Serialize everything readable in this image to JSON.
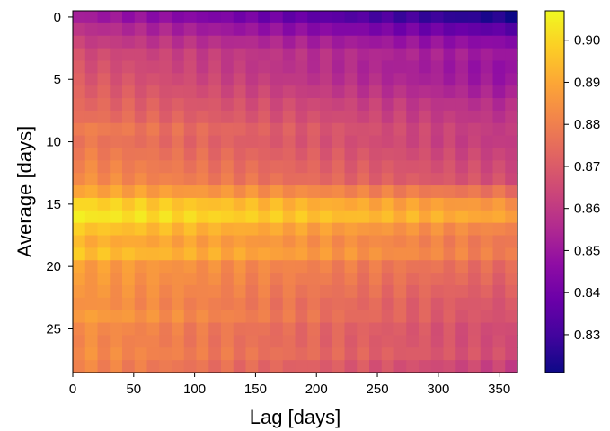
{
  "chart_data": {
    "type": "heatmap",
    "title": "",
    "xlabel": "Lag [days]",
    "ylabel": "Average [days]",
    "x_range": [
      0,
      365
    ],
    "y_range": [
      0,
      29
    ],
    "y_inverted": true,
    "x_ticks": [
      0,
      50,
      100,
      150,
      200,
      250,
      300,
      350
    ],
    "y_ticks": [
      0,
      5,
      10,
      15,
      20,
      25
    ],
    "colormap": "plasma",
    "colorbar": {
      "min": 0.821,
      "max": 0.907,
      "ticks": [
        0.83,
        0.84,
        0.85,
        0.86,
        0.87,
        0.88,
        0.89,
        0.9
      ],
      "tick_labels": [
        "0.83",
        "0.84",
        "0.85",
        "0.86",
        "0.87",
        "0.88",
        "0.89",
        "0.90"
      ]
    },
    "rows": [
      {
        "average": 0,
        "start": 0.852,
        "end": 0.823
      },
      {
        "average": 1,
        "start": 0.858,
        "end": 0.835
      },
      {
        "average": 2,
        "start": 0.862,
        "end": 0.845
      },
      {
        "average": 3,
        "start": 0.866,
        "end": 0.85
      },
      {
        "average": 4,
        "start": 0.868,
        "end": 0.848
      },
      {
        "average": 5,
        "start": 0.87,
        "end": 0.849
      },
      {
        "average": 6,
        "start": 0.872,
        "end": 0.852
      },
      {
        "average": 7,
        "start": 0.874,
        "end": 0.856
      },
      {
        "average": 8,
        "start": 0.876,
        "end": 0.858
      },
      {
        "average": 9,
        "start": 0.88,
        "end": 0.86
      },
      {
        "average": 10,
        "start": 0.878,
        "end": 0.86
      },
      {
        "average": 11,
        "start": 0.88,
        "end": 0.862
      },
      {
        "average": 12,
        "start": 0.882,
        "end": 0.864
      },
      {
        "average": 13,
        "start": 0.884,
        "end": 0.866
      },
      {
        "average": 14,
        "start": 0.89,
        "end": 0.876
      },
      {
        "average": 15,
        "start": 0.9,
        "end": 0.885
      },
      {
        "average": 16,
        "start": 0.904,
        "end": 0.889
      },
      {
        "average": 17,
        "start": 0.897,
        "end": 0.881
      },
      {
        "average": 18,
        "start": 0.892,
        "end": 0.878
      },
      {
        "average": 19,
        "start": 0.896,
        "end": 0.879
      },
      {
        "average": 20,
        "start": 0.888,
        "end": 0.874
      },
      {
        "average": 21,
        "start": 0.887,
        "end": 0.872
      },
      {
        "average": 22,
        "start": 0.886,
        "end": 0.87
      },
      {
        "average": 23,
        "start": 0.885,
        "end": 0.868
      },
      {
        "average": 24,
        "start": 0.888,
        "end": 0.867
      },
      {
        "average": 25,
        "start": 0.884,
        "end": 0.865
      },
      {
        "average": 26,
        "start": 0.883,
        "end": 0.865
      },
      {
        "average": 27,
        "start": 0.884,
        "end": 0.866
      },
      {
        "average": 28,
        "start": 0.882,
        "end": 0.862
      }
    ],
    "grid": false,
    "legend": "colorbar-right"
  }
}
